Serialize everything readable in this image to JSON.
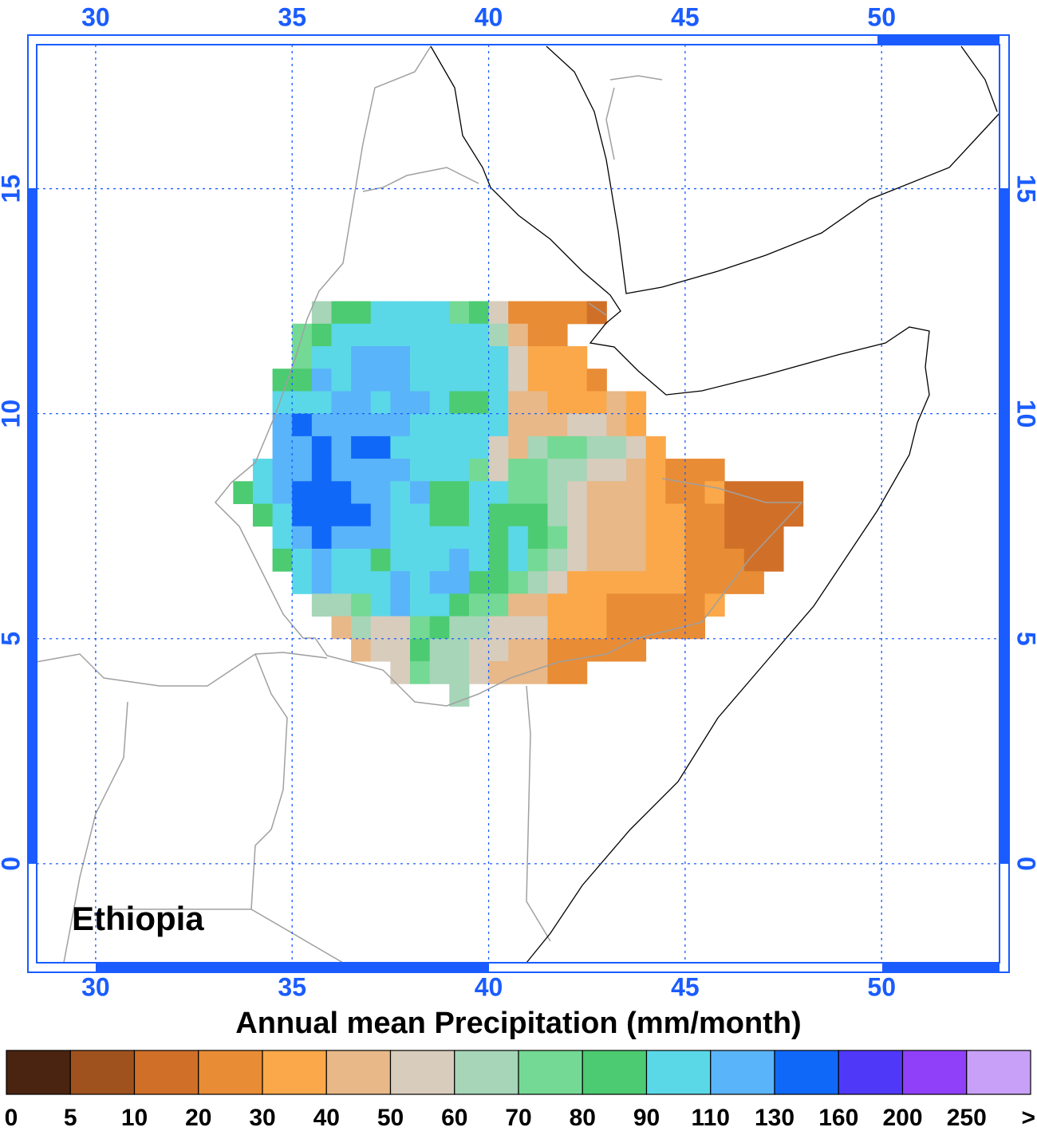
{
  "map": {
    "type": "grid",
    "lon_axis": {
      "lim": [
        28.5,
        53
      ],
      "ticks": [
        30,
        35,
        40,
        45,
        50
      ]
    },
    "lat_axis": {
      "lim": [
        -2.2,
        18.2
      ],
      "ticks": [
        0,
        5,
        10,
        15
      ]
    },
    "grid": true,
    "axis_color": "#1a5cff",
    "label": "Ethiopia",
    "cells": {
      "lon0": 33.5,
      "lat0": 12.5,
      "step": 0.5,
      "values": [
        [
          null,
          null,
          null,
          null,
          65,
          85,
          85,
          100,
          100,
          100,
          100,
          75,
          85,
          55,
          25,
          25,
          25,
          25,
          15,
          null,
          null,
          null,
          null,
          null,
          null,
          null,
          null,
          null,
          null
        ],
        [
          null,
          null,
          null,
          75,
          85,
          100,
          100,
          100,
          100,
          100,
          100,
          100,
          100,
          65,
          45,
          25,
          25,
          null,
          null,
          null,
          null,
          null,
          null,
          null,
          null,
          null,
          null,
          null,
          null
        ],
        [
          null,
          null,
          null,
          75,
          100,
          100,
          120,
          120,
          120,
          100,
          100,
          100,
          100,
          100,
          55,
          35,
          35,
          35,
          null,
          null,
          null,
          null,
          null,
          null,
          null,
          null,
          null,
          null,
          null
        ],
        [
          null,
          null,
          85,
          85,
          120,
          100,
          120,
          120,
          120,
          100,
          100,
          100,
          100,
          100,
          55,
          35,
          35,
          35,
          25,
          null,
          null,
          null,
          null,
          null,
          null,
          null,
          null,
          null,
          null
        ],
        [
          null,
          null,
          100,
          100,
          100,
          120,
          120,
          100,
          120,
          120,
          100,
          85,
          85,
          100,
          45,
          45,
          35,
          35,
          35,
          45,
          35,
          null,
          null,
          null,
          null,
          null,
          null,
          null,
          null
        ],
        [
          null,
          null,
          120,
          145,
          120,
          120,
          120,
          120,
          120,
          100,
          100,
          100,
          100,
          100,
          45,
          45,
          45,
          55,
          55,
          45,
          35,
          null,
          null,
          null,
          null,
          null,
          null,
          null,
          null
        ],
        [
          null,
          null,
          120,
          120,
          145,
          120,
          145,
          145,
          100,
          100,
          100,
          100,
          100,
          55,
          45,
          65,
          75,
          75,
          65,
          65,
          55,
          35,
          null,
          null,
          null,
          null,
          null,
          null,
          null
        ],
        [
          null,
          100,
          120,
          120,
          145,
          120,
          120,
          120,
          120,
          100,
          100,
          100,
          75,
          55,
          75,
          75,
          65,
          65,
          55,
          55,
          45,
          35,
          25,
          25,
          25,
          null,
          null,
          null,
          null
        ],
        [
          85,
          100,
          120,
          145,
          145,
          145,
          120,
          120,
          100,
          120,
          85,
          85,
          100,
          100,
          75,
          75,
          65,
          55,
          45,
          45,
          45,
          35,
          25,
          25,
          35,
          15,
          15,
          15,
          15
        ],
        [
          null,
          85,
          100,
          145,
          145,
          145,
          145,
          120,
          100,
          100,
          85,
          85,
          100,
          85,
          85,
          85,
          65,
          55,
          45,
          45,
          45,
          35,
          35,
          25,
          25,
          15,
          15,
          15,
          15
        ],
        [
          null,
          null,
          100,
          120,
          145,
          120,
          120,
          120,
          100,
          100,
          100,
          100,
          100,
          85,
          100,
          85,
          75,
          55,
          45,
          45,
          45,
          35,
          35,
          25,
          25,
          15,
          15,
          15,
          null
        ],
        [
          null,
          null,
          85,
          100,
          120,
          100,
          100,
          85,
          100,
          100,
          100,
          120,
          100,
          85,
          100,
          75,
          65,
          55,
          45,
          45,
          45,
          35,
          35,
          25,
          25,
          25,
          15,
          15,
          null
        ],
        [
          null,
          null,
          null,
          100,
          120,
          100,
          100,
          100,
          120,
          100,
          120,
          120,
          85,
          85,
          75,
          65,
          55,
          35,
          35,
          35,
          35,
          35,
          35,
          25,
          25,
          25,
          25,
          null,
          null
        ],
        [
          null,
          null,
          null,
          null,
          65,
          65,
          75,
          100,
          120,
          100,
          100,
          85,
          75,
          75,
          45,
          45,
          35,
          35,
          35,
          25,
          25,
          25,
          25,
          25,
          35,
          null,
          null,
          null,
          null
        ],
        [
          null,
          null,
          null,
          null,
          null,
          45,
          65,
          55,
          55,
          75,
          85,
          65,
          65,
          55,
          55,
          55,
          35,
          35,
          35,
          25,
          25,
          25,
          25,
          25,
          null,
          null,
          null,
          null,
          null
        ],
        [
          null,
          null,
          null,
          null,
          null,
          null,
          45,
          55,
          55,
          85,
          65,
          65,
          55,
          55,
          45,
          45,
          25,
          25,
          25,
          25,
          25,
          null,
          null,
          null,
          null,
          null,
          null,
          null,
          null
        ],
        [
          null,
          null,
          null,
          null,
          null,
          null,
          null,
          null,
          55,
          75,
          65,
          65,
          55,
          45,
          45,
          45,
          25,
          25,
          null,
          null,
          null,
          null,
          null,
          null,
          null,
          null,
          null,
          null,
          null
        ],
        [
          null,
          null,
          null,
          null,
          null,
          null,
          null,
          null,
          null,
          null,
          null,
          65,
          null,
          null,
          null,
          null,
          null,
          null,
          null,
          null,
          null,
          null,
          null,
          null,
          null,
          null,
          null,
          null,
          null
        ]
      ]
    }
  },
  "colorbar": {
    "title": "Annual mean Precipitation (mm/month)",
    "levels": [
      0,
      5,
      10,
      20,
      30,
      40,
      50,
      60,
      70,
      80,
      90,
      110,
      130,
      160,
      200,
      250
    ],
    "colors": [
      "#4a2410",
      "#a0521e",
      "#d07028",
      "#e88c35",
      "#faa84a",
      "#e8b888",
      "#d8ccbc",
      "#a6d5b8",
      "#74d994",
      "#4ccb72",
      "#5ad8e8",
      "#5ab4fa",
      "#1068f8",
      "#5038f8",
      "#9040f8",
      "#c8a0f8"
    ],
    "over_label": ">"
  }
}
